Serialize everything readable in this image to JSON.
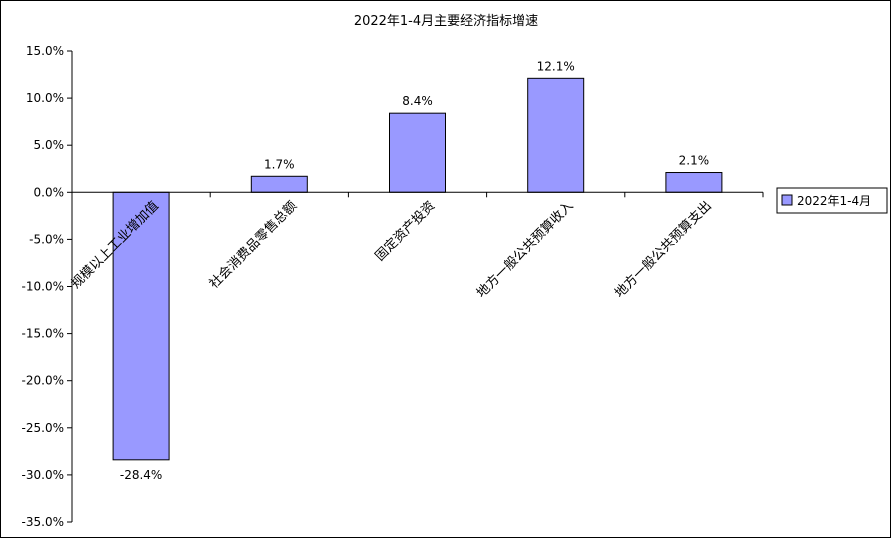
{
  "chart_data": {
    "type": "bar",
    "title": "2022年1-4月主要经济指标增速",
    "categories": [
      "规模以上工业增加值",
      "社会消费品零售总额",
      "固定资产投资",
      "地方一般公共预算收入",
      "地方一般公共预算支出"
    ],
    "series": [
      {
        "name": "2022年1-4月",
        "values": [
          -28.4,
          1.7,
          8.4,
          12.1,
          2.1
        ],
        "color": "#9999ff"
      }
    ],
    "data_labels": [
      "-28.4%",
      "1.7%",
      "8.4%",
      "12.1%",
      "2.1%"
    ],
    "ylim": [
      -35,
      15
    ],
    "yticks": [
      15,
      10,
      5,
      0,
      -5,
      -10,
      -15,
      -20,
      -25,
      -30,
      -35
    ],
    "ytick_labels": [
      "15.0%",
      "10.0%",
      "5.0%",
      "0.0%",
      "-5.0%",
      "-10.0%",
      "-15.0%",
      "-20.0%",
      "-25.0%",
      "-30.0%",
      "-35.0%"
    ],
    "xlabel": "",
    "ylabel": "",
    "grid": false,
    "legend": "right"
  }
}
